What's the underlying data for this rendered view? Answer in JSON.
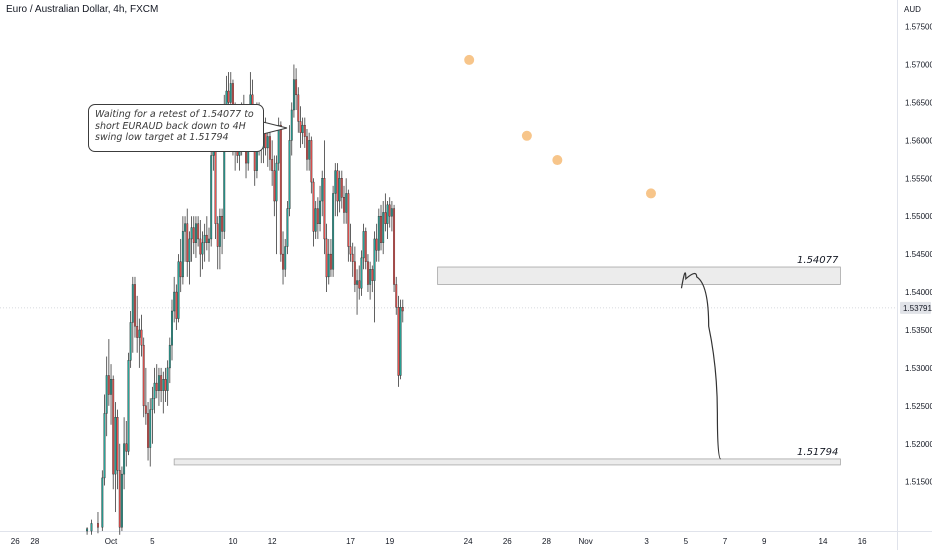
{
  "header": {
    "title": "Euro / Australian Dollar, 4h, FXCM"
  },
  "annotation": {
    "text": "Waiting for a retest of 1.54077 to short EURAUD back down to 4H swing low target at 1.51794"
  },
  "colors": {
    "bull": "#26a69a",
    "bear": "#ef5350",
    "zone_fill": "#ececec",
    "zone_border": "#a6a6a6",
    "marker": "#f7c58a",
    "path": "#333333"
  },
  "chart_data": {
    "type": "candlestick",
    "symbol": "EURAUD",
    "timeframe": "4h",
    "y_axis": {
      "unit": "AUD",
      "ticks": [
        "1.57500",
        "1.57000",
        "1.56500",
        "1.56000",
        "1.55500",
        "1.55000",
        "1.54500",
        "1.54000",
        "1.53500",
        "1.53000",
        "1.52500",
        "1.52000",
        "1.51500"
      ],
      "ylim": [
        1.5085,
        1.5785
      ]
    },
    "x_axis": {
      "ticks": [
        {
          "label": "26",
          "pos": -44
        },
        {
          "label": "28",
          "pos": -35
        },
        {
          "label": "Oct",
          "pos": 0
        },
        {
          "label": "5",
          "pos": 19
        },
        {
          "label": "10",
          "pos": 56
        },
        {
          "label": "12",
          "pos": 74
        },
        {
          "label": "17",
          "pos": 110
        },
        {
          "label": "19",
          "pos": 128
        },
        {
          "label": "24",
          "pos": 164
        },
        {
          "label": "26",
          "pos": 182
        },
        {
          "label": "28",
          "pos": 200
        },
        {
          "label": "Nov",
          "pos": 218
        },
        {
          "label": "3",
          "pos": 246
        },
        {
          "label": "5",
          "pos": 264
        },
        {
          "label": "7",
          "pos": 282
        },
        {
          "label": "9",
          "pos": 300
        },
        {
          "label": "14",
          "pos": 327
        },
        {
          "label": "16",
          "pos": 345
        }
      ],
      "xlim": [
        -51,
        361
      ]
    },
    "current_price": "1.53791",
    "levels": [
      {
        "label": "1.54077",
        "top": 1.5433,
        "bottom": 1.541,
        "from": 150,
        "to": 335
      },
      {
        "label": "1.51794",
        "top": 1.518,
        "bottom": 1.5174,
        "from": 29,
        "to": 335
      }
    ],
    "swing_high_markers": [
      {
        "pos": 164.5,
        "price": 1.5706
      },
      {
        "pos": 191,
        "price": 1.5606
      },
      {
        "pos": 205,
        "price": 1.5574
      },
      {
        "pos": 248,
        "price": 1.553
      }
    ],
    "projection": [
      {
        "pos": 262,
        "price": 1.5405
      },
      {
        "pos": 266,
        "price": 1.543
      },
      {
        "pos": 272,
        "price": 1.541
      },
      {
        "pos": 277,
        "price": 1.53
      },
      {
        "pos": 280,
        "price": 1.518
      }
    ],
    "candles": [
      {
        "t": -11,
        "o": 1.5085,
        "h": 1.509,
        "l": 1.508,
        "c": 1.5088
      },
      {
        "t": -9,
        "o": 1.5085,
        "h": 1.51,
        "l": 1.508,
        "c": 1.5095
      },
      {
        "t": -6,
        "o": 1.5095,
        "h": 1.511,
        "l": 1.5082,
        "c": 1.509
      },
      {
        "t": -4,
        "o": 1.509,
        "h": 1.5165,
        "l": 1.5085,
        "c": 1.5155
      },
      {
        "t": -3,
        "o": 1.5155,
        "h": 1.5265,
        "l": 1.5145,
        "c": 1.524
      },
      {
        "t": -2,
        "o": 1.524,
        "h": 1.5315,
        "l": 1.521,
        "c": 1.529
      },
      {
        "t": -1,
        "o": 1.529,
        "h": 1.5338,
        "l": 1.525,
        "c": 1.5265
      },
      {
        "t": 0,
        "o": 1.5265,
        "h": 1.5305,
        "l": 1.5225,
        "c": 1.5285
      },
      {
        "t": 1,
        "o": 1.5285,
        "h": 1.529,
        "l": 1.514,
        "c": 1.516
      },
      {
        "t": 2,
        "o": 1.516,
        "h": 1.5255,
        "l": 1.511,
        "c": 1.5235
      },
      {
        "t": 3,
        "o": 1.5235,
        "h": 1.5245,
        "l": 1.514,
        "c": 1.5165
      },
      {
        "t": 4,
        "o": 1.5165,
        "h": 1.52,
        "l": 1.508,
        "c": 1.509
      },
      {
        "t": 5,
        "o": 1.509,
        "h": 1.517,
        "l": 1.5085,
        "c": 1.516
      },
      {
        "t": 6,
        "o": 1.516,
        "h": 1.5235,
        "l": 1.514,
        "c": 1.52
      },
      {
        "t": 7,
        "o": 1.52,
        "h": 1.523,
        "l": 1.517,
        "c": 1.519
      },
      {
        "t": 8,
        "o": 1.519,
        "h": 1.532,
        "l": 1.5185,
        "c": 1.531
      },
      {
        "t": 9,
        "o": 1.531,
        "h": 1.5375,
        "l": 1.53,
        "c": 1.536
      },
      {
        "t": 10,
        "o": 1.536,
        "h": 1.542,
        "l": 1.532,
        "c": 1.541
      },
      {
        "t": 11,
        "o": 1.541,
        "h": 1.542,
        "l": 1.534,
        "c": 1.5355
      },
      {
        "t": 12,
        "o": 1.5355,
        "h": 1.5395,
        "l": 1.532,
        "c": 1.534
      },
      {
        "t": 13,
        "o": 1.534,
        "h": 1.5365,
        "l": 1.53,
        "c": 1.535
      },
      {
        "t": 14,
        "o": 1.535,
        "h": 1.537,
        "l": 1.5315,
        "c": 1.533
      },
      {
        "t": 15,
        "o": 1.533,
        "h": 1.534,
        "l": 1.5235,
        "c": 1.525
      },
      {
        "t": 16,
        "o": 1.525,
        "h": 1.53,
        "l": 1.5225,
        "c": 1.524
      },
      {
        "t": 17,
        "o": 1.524,
        "h": 1.5255,
        "l": 1.5178,
        "c": 1.5195
      },
      {
        "t": 18,
        "o": 1.5195,
        "h": 1.526,
        "l": 1.517,
        "c": 1.5245
      },
      {
        "t": 19,
        "o": 1.5245,
        "h": 1.5275,
        "l": 1.52,
        "c": 1.526
      },
      {
        "t": 20,
        "o": 1.526,
        "h": 1.53,
        "l": 1.524,
        "c": 1.528
      },
      {
        "t": 21,
        "o": 1.528,
        "h": 1.5305,
        "l": 1.526,
        "c": 1.527
      },
      {
        "t": 22,
        "o": 1.527,
        "h": 1.53,
        "l": 1.525,
        "c": 1.529
      },
      {
        "t": 23,
        "o": 1.529,
        "h": 1.53,
        "l": 1.5255,
        "c": 1.527
      },
      {
        "t": 24,
        "o": 1.527,
        "h": 1.5295,
        "l": 1.524,
        "c": 1.5285
      },
      {
        "t": 25,
        "o": 1.5285,
        "h": 1.53,
        "l": 1.5255,
        "c": 1.527
      },
      {
        "t": 26,
        "o": 1.527,
        "h": 1.531,
        "l": 1.525,
        "c": 1.53
      },
      {
        "t": 27,
        "o": 1.53,
        "h": 1.534,
        "l": 1.528,
        "c": 1.533
      },
      {
        "t": 28,
        "o": 1.533,
        "h": 1.539,
        "l": 1.531,
        "c": 1.5375
      },
      {
        "t": 29,
        "o": 1.5375,
        "h": 1.542,
        "l": 1.536,
        "c": 1.54
      },
      {
        "t": 30,
        "o": 1.54,
        "h": 1.541,
        "l": 1.535,
        "c": 1.5365
      },
      {
        "t": 31,
        "o": 1.5365,
        "h": 1.545,
        "l": 1.536,
        "c": 1.544
      },
      {
        "t": 32,
        "o": 1.544,
        "h": 1.547,
        "l": 1.54,
        "c": 1.542
      },
      {
        "t": 33,
        "o": 1.542,
        "h": 1.55,
        "l": 1.541,
        "c": 1.548
      },
      {
        "t": 34,
        "o": 1.548,
        "h": 1.55,
        "l": 1.544,
        "c": 1.549
      },
      {
        "t": 35,
        "o": 1.549,
        "h": 1.551,
        "l": 1.542,
        "c": 1.544
      },
      {
        "t": 36,
        "o": 1.544,
        "h": 1.548,
        "l": 1.541,
        "c": 1.547
      },
      {
        "t": 37,
        "o": 1.547,
        "h": 1.55,
        "l": 1.544,
        "c": 1.5485
      },
      {
        "t": 38,
        "o": 1.5485,
        "h": 1.55,
        "l": 1.545,
        "c": 1.5465
      },
      {
        "t": 39,
        "o": 1.5465,
        "h": 1.55,
        "l": 1.5445,
        "c": 1.549
      },
      {
        "t": 40,
        "o": 1.549,
        "h": 1.55,
        "l": 1.546,
        "c": 1.547
      },
      {
        "t": 41,
        "o": 1.547,
        "h": 1.5495,
        "l": 1.542,
        "c": 1.545
      },
      {
        "t": 42,
        "o": 1.545,
        "h": 1.548,
        "l": 1.543,
        "c": 1.5465
      },
      {
        "t": 43,
        "o": 1.5465,
        "h": 1.549,
        "l": 1.544,
        "c": 1.5475
      },
      {
        "t": 44,
        "o": 1.5475,
        "h": 1.55,
        "l": 1.5455,
        "c": 1.5465
      },
      {
        "t": 45,
        "o": 1.5465,
        "h": 1.5485,
        "l": 1.544,
        "c": 1.547
      },
      {
        "t": 46,
        "o": 1.547,
        "h": 1.5595,
        "l": 1.546,
        "c": 1.558
      },
      {
        "t": 47,
        "o": 1.558,
        "h": 1.564,
        "l": 1.556,
        "c": 1.5625
      },
      {
        "t": 48,
        "o": 1.5625,
        "h": 1.563,
        "l": 1.547,
        "c": 1.549
      },
      {
        "t": 49,
        "o": 1.549,
        "h": 1.55,
        "l": 1.543,
        "c": 1.546
      },
      {
        "t": 50,
        "o": 1.546,
        "h": 1.551,
        "l": 1.543,
        "c": 1.55
      },
      {
        "t": 51,
        "o": 1.55,
        "h": 1.551,
        "l": 1.545,
        "c": 1.548
      },
      {
        "t": 52,
        "o": 1.548,
        "h": 1.566,
        "l": 1.547,
        "c": 1.564
      },
      {
        "t": 53,
        "o": 1.564,
        "h": 1.5685,
        "l": 1.562,
        "c": 1.5665
      },
      {
        "t": 54,
        "o": 1.5665,
        "h": 1.569,
        "l": 1.564,
        "c": 1.565
      },
      {
        "t": 55,
        "o": 1.565,
        "h": 1.569,
        "l": 1.562,
        "c": 1.5675
      },
      {
        "t": 56,
        "o": 1.5675,
        "h": 1.568,
        "l": 1.558,
        "c": 1.56
      },
      {
        "t": 57,
        "o": 1.56,
        "h": 1.565,
        "l": 1.556,
        "c": 1.562
      },
      {
        "t": 58,
        "o": 1.562,
        "h": 1.564,
        "l": 1.557,
        "c": 1.558
      },
      {
        "t": 59,
        "o": 1.558,
        "h": 1.562,
        "l": 1.556,
        "c": 1.56
      },
      {
        "t": 60,
        "o": 1.56,
        "h": 1.565,
        "l": 1.558,
        "c": 1.563
      },
      {
        "t": 61,
        "o": 1.563,
        "h": 1.566,
        "l": 1.56,
        "c": 1.561
      },
      {
        "t": 62,
        "o": 1.561,
        "h": 1.563,
        "l": 1.555,
        "c": 1.557
      },
      {
        "t": 63,
        "o": 1.557,
        "h": 1.564,
        "l": 1.556,
        "c": 1.563
      },
      {
        "t": 64,
        "o": 1.563,
        "h": 1.569,
        "l": 1.56,
        "c": 1.566
      },
      {
        "t": 65,
        "o": 1.566,
        "h": 1.568,
        "l": 1.56,
        "c": 1.561
      },
      {
        "t": 66,
        "o": 1.561,
        "h": 1.563,
        "l": 1.554,
        "c": 1.556
      },
      {
        "t": 67,
        "o": 1.556,
        "h": 1.565,
        "l": 1.555,
        "c": 1.564
      },
      {
        "t": 68,
        "o": 1.564,
        "h": 1.565,
        "l": 1.558,
        "c": 1.56
      },
      {
        "t": 69,
        "o": 1.56,
        "h": 1.562,
        "l": 1.557,
        "c": 1.559
      },
      {
        "t": 70,
        "o": 1.559,
        "h": 1.564,
        "l": 1.557,
        "c": 1.562
      },
      {
        "t": 71,
        "o": 1.562,
        "h": 1.563,
        "l": 1.558,
        "c": 1.559
      },
      {
        "t": 72,
        "o": 1.559,
        "h": 1.562,
        "l": 1.5565,
        "c": 1.5605
      },
      {
        "t": 73,
        "o": 1.5605,
        "h": 1.5615,
        "l": 1.556,
        "c": 1.5575
      },
      {
        "t": 74,
        "o": 1.5575,
        "h": 1.56,
        "l": 1.554,
        "c": 1.556
      },
      {
        "t": 75,
        "o": 1.556,
        "h": 1.558,
        "l": 1.55,
        "c": 1.552
      },
      {
        "t": 76,
        "o": 1.552,
        "h": 1.558,
        "l": 1.545,
        "c": 1.557
      },
      {
        "t": 77,
        "o": 1.557,
        "h": 1.563,
        "l": 1.556,
        "c": 1.562
      },
      {
        "t": 78,
        "o": 1.562,
        "h": 1.5625,
        "l": 1.544,
        "c": 1.545
      },
      {
        "t": 79,
        "o": 1.545,
        "h": 1.548,
        "l": 1.541,
        "c": 1.543
      },
      {
        "t": 80,
        "o": 1.543,
        "h": 1.547,
        "l": 1.542,
        "c": 1.546
      },
      {
        "t": 81,
        "o": 1.546,
        "h": 1.552,
        "l": 1.545,
        "c": 1.551
      },
      {
        "t": 82,
        "o": 1.551,
        "h": 1.562,
        "l": 1.55,
        "c": 1.56
      },
      {
        "t": 83,
        "o": 1.56,
        "h": 1.565,
        "l": 1.558,
        "c": 1.564
      },
      {
        "t": 84,
        "o": 1.564,
        "h": 1.57,
        "l": 1.563,
        "c": 1.568
      },
      {
        "t": 85,
        "o": 1.568,
        "h": 1.5695,
        "l": 1.564,
        "c": 1.566
      },
      {
        "t": 86,
        "o": 1.566,
        "h": 1.567,
        "l": 1.561,
        "c": 1.5625
      },
      {
        "t": 87,
        "o": 1.5625,
        "h": 1.5645,
        "l": 1.559,
        "c": 1.561
      },
      {
        "t": 88,
        "o": 1.561,
        "h": 1.563,
        "l": 1.5595,
        "c": 1.562
      },
      {
        "t": 89,
        "o": 1.562,
        "h": 1.563,
        "l": 1.559,
        "c": 1.5605
      },
      {
        "t": 90,
        "o": 1.5605,
        "h": 1.5615,
        "l": 1.556,
        "c": 1.5575
      },
      {
        "t": 91,
        "o": 1.5575,
        "h": 1.561,
        "l": 1.556,
        "c": 1.56
      },
      {
        "t": 92,
        "o": 1.56,
        "h": 1.5605,
        "l": 1.553,
        "c": 1.5545
      },
      {
        "t": 93,
        "o": 1.5545,
        "h": 1.555,
        "l": 1.546,
        "c": 1.548
      },
      {
        "t": 94,
        "o": 1.548,
        "h": 1.552,
        "l": 1.547,
        "c": 1.551
      },
      {
        "t": 95,
        "o": 1.551,
        "h": 1.5525,
        "l": 1.547,
        "c": 1.549
      },
      {
        "t": 96,
        "o": 1.549,
        "h": 1.554,
        "l": 1.548,
        "c": 1.552
      },
      {
        "t": 97,
        "o": 1.552,
        "h": 1.556,
        "l": 1.55,
        "c": 1.555
      },
      {
        "t": 98,
        "o": 1.555,
        "h": 1.56,
        "l": 1.545,
        "c": 1.547
      },
      {
        "t": 99,
        "o": 1.547,
        "h": 1.549,
        "l": 1.54,
        "c": 1.542
      },
      {
        "t": 100,
        "o": 1.542,
        "h": 1.547,
        "l": 1.541,
        "c": 1.545
      },
      {
        "t": 101,
        "o": 1.545,
        "h": 1.547,
        "l": 1.542,
        "c": 1.543
      },
      {
        "t": 102,
        "o": 1.543,
        "h": 1.554,
        "l": 1.542,
        "c": 1.553
      },
      {
        "t": 103,
        "o": 1.553,
        "h": 1.557,
        "l": 1.55,
        "c": 1.556
      },
      {
        "t": 104,
        "o": 1.556,
        "h": 1.557,
        "l": 1.55,
        "c": 1.552
      },
      {
        "t": 105,
        "o": 1.552,
        "h": 1.556,
        "l": 1.5505,
        "c": 1.555
      },
      {
        "t": 106,
        "o": 1.555,
        "h": 1.556,
        "l": 1.551,
        "c": 1.5525
      },
      {
        "t": 107,
        "o": 1.5525,
        "h": 1.554,
        "l": 1.549,
        "c": 1.5505
      },
      {
        "t": 108,
        "o": 1.5505,
        "h": 1.555,
        "l": 1.549,
        "c": 1.553
      },
      {
        "t": 109,
        "o": 1.553,
        "h": 1.5535,
        "l": 1.544,
        "c": 1.546
      },
      {
        "t": 110,
        "o": 1.546,
        "h": 1.549,
        "l": 1.544,
        "c": 1.545
      },
      {
        "t": 111,
        "o": 1.545,
        "h": 1.5465,
        "l": 1.542,
        "c": 1.544
      },
      {
        "t": 112,
        "o": 1.544,
        "h": 1.546,
        "l": 1.54,
        "c": 1.541
      },
      {
        "t": 113,
        "o": 1.541,
        "h": 1.543,
        "l": 1.537,
        "c": 1.5415
      },
      {
        "t": 114,
        "o": 1.5415,
        "h": 1.5435,
        "l": 1.539,
        "c": 1.5405
      },
      {
        "t": 115,
        "o": 1.5405,
        "h": 1.5455,
        "l": 1.5395,
        "c": 1.5445
      },
      {
        "t": 116,
        "o": 1.5445,
        "h": 1.549,
        "l": 1.543,
        "c": 1.548
      },
      {
        "t": 117,
        "o": 1.548,
        "h": 1.5485,
        "l": 1.543,
        "c": 1.544
      },
      {
        "t": 118,
        "o": 1.544,
        "h": 1.545,
        "l": 1.54,
        "c": 1.541
      },
      {
        "t": 119,
        "o": 1.541,
        "h": 1.544,
        "l": 1.539,
        "c": 1.543
      },
      {
        "t": 120,
        "o": 1.543,
        "h": 1.5435,
        "l": 1.54,
        "c": 1.5415
      },
      {
        "t": 121,
        "o": 1.5415,
        "h": 1.548,
        "l": 1.536,
        "c": 1.547
      },
      {
        "t": 122,
        "o": 1.547,
        "h": 1.549,
        "l": 1.544,
        "c": 1.5455
      },
      {
        "t": 123,
        "o": 1.5455,
        "h": 1.551,
        "l": 1.544,
        "c": 1.55
      },
      {
        "t": 124,
        "o": 1.55,
        "h": 1.5515,
        "l": 1.5455,
        "c": 1.5465
      },
      {
        "t": 125,
        "o": 1.5465,
        "h": 1.552,
        "l": 1.545,
        "c": 1.5505
      },
      {
        "t": 126,
        "o": 1.5505,
        "h": 1.553,
        "l": 1.548,
        "c": 1.549
      },
      {
        "t": 127,
        "o": 1.549,
        "h": 1.552,
        "l": 1.547,
        "c": 1.5515
      },
      {
        "t": 128,
        "o": 1.5515,
        "h": 1.5525,
        "l": 1.5485,
        "c": 1.55
      },
      {
        "t": 129,
        "o": 1.55,
        "h": 1.552,
        "l": 1.548,
        "c": 1.551
      },
      {
        "t": 130,
        "o": 1.551,
        "h": 1.5515,
        "l": 1.54,
        "c": 1.541
      },
      {
        "t": 131,
        "o": 1.541,
        "h": 1.542,
        "l": 1.537,
        "c": 1.538
      },
      {
        "t": 132,
        "o": 1.538,
        "h": 1.5395,
        "l": 1.5275,
        "c": 1.529
      },
      {
        "t": 133,
        "o": 1.529,
        "h": 1.539,
        "l": 1.5285,
        "c": 1.538
      },
      {
        "t": 134,
        "o": 1.538,
        "h": 1.539,
        "l": 1.536,
        "c": 1.5375
      }
    ]
  }
}
